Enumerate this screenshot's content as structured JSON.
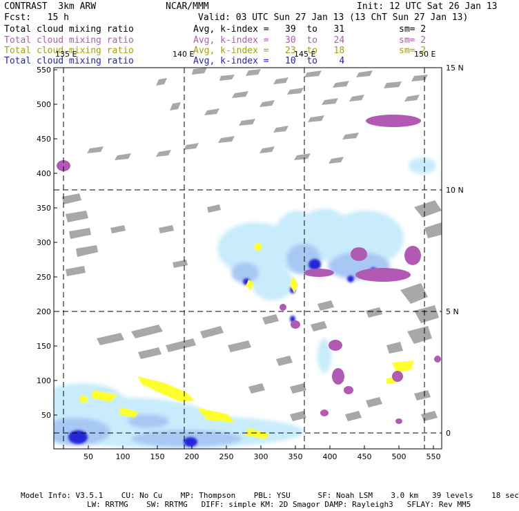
{
  "header": {
    "left_title": "CONTRAST  3km ARW",
    "center_title": "NCAR/MMM",
    "init": "Init: 12 UTC Sat 26 Jan 13",
    "fcst": "Fcst:   15 h",
    "valid": "Valid: 03 UTC Sun 27 Jan 13 (13 ChT Sun 27 Jan 13)"
  },
  "legend": [
    {
      "field": "Total cloud mixing ratio",
      "range": "Avg, k-index =   39  to   31",
      "sm": "sm= 2",
      "color": "#000000"
    },
    {
      "field": "Total cloud mixing ratio",
      "range": "Avg, k-index =   30  to   24",
      "sm": "sm= 2",
      "color": "#b05ab4"
    },
    {
      "field": "Total cloud mixing ratio",
      "range": "Avg, k-index =   23  to   18",
      "sm": "sm= 2",
      "color": "#a8a000"
    },
    {
      "field": "Total cloud mixing ratio",
      "range": "Avg, k-index =   10  to    4",
      "sm": "",
      "color": "#2020d0"
    }
  ],
  "map": {
    "lon_labels": [
      "135 E",
      "140 E",
      "145 E",
      "150 E"
    ],
    "lat_labels": [
      "15 N",
      "10 N",
      "5 N",
      "0"
    ],
    "x_ticks": [
      "50",
      "100",
      "150",
      "200",
      "250",
      "300",
      "350",
      "400",
      "450",
      "500",
      "550"
    ],
    "y_ticks": [
      "550",
      "500",
      "450",
      "400",
      "350",
      "300",
      "250",
      "200",
      "150",
      "100",
      "50"
    ]
  },
  "footer": {
    "line1": "Model Info: V3.5.1    CU: No Cu    MP: Thompson    PBL: YSU      SF: Noah LSM    3.0 km   39 levels    18 sec",
    "line2": "LW: RRTMG    SW: RRTMG   DIFF: simple KM: 2D Smagor DAMP: Rayleigh3   SFLAY: Rev MM5"
  },
  "colors": {
    "gray": "#a0a0a0",
    "purple": "#b05ab4",
    "yellow": "#ffff30",
    "light_blue": "#c8ecfc",
    "mid_blue": "#a0c0f0",
    "dark_blue": "#2020d0"
  }
}
